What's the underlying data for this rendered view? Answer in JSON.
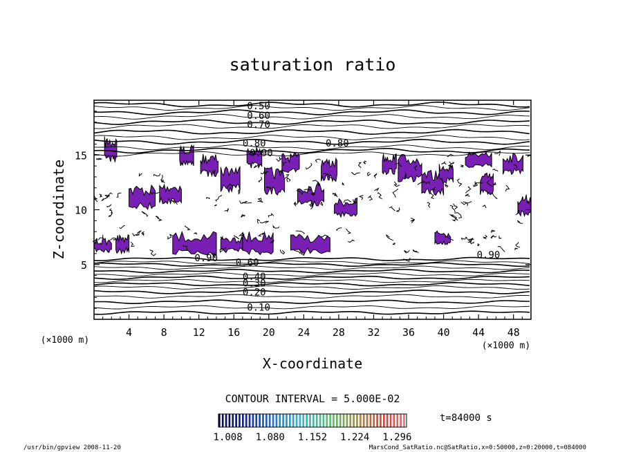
{
  "chart_data": {
    "type": "contour",
    "title": "saturation ratio",
    "xlabel": "X-coordinate",
    "ylabel": "Z-coordinate",
    "x_unit": "(×1000 m)",
    "y_unit": "(×1000 m)",
    "xlim": [
      0,
      50
    ],
    "ylim": [
      0,
      20
    ],
    "x_ticks": [
      4,
      8,
      12,
      16,
      20,
      24,
      28,
      32,
      36,
      40,
      44,
      48
    ],
    "y_ticks": [
      5,
      10,
      15
    ],
    "contour_interval": "CONTOUR INTERVAL = 5.000E-02",
    "time": "t=84000 s",
    "colorbar_ticks": [
      "1.008",
      "1.080",
      "1.152",
      "1.224",
      "1.296"
    ],
    "colorbar_range": [
      1.008,
      1.296
    ],
    "fill_color": "#7a1fb5",
    "contour_labels": [
      {
        "text": "0.50",
        "x": 17.5,
        "z": 19.5
      },
      {
        "text": "0.60",
        "x": 17.5,
        "z": 18.6
      },
      {
        "text": "0.70",
        "x": 17.5,
        "z": 17.8
      },
      {
        "text": "0.80",
        "x": 17.0,
        "z": 16.1
      },
      {
        "text": "0.90",
        "x": 17.8,
        "z": 15.2
      },
      {
        "text": "0.80",
        "x": 26.5,
        "z": 16.1
      },
      {
        "text": "0.90",
        "x": 11.5,
        "z": 5.6
      },
      {
        "text": "0.90",
        "x": 43.8,
        "z": 5.9
      },
      {
        "text": "0.60",
        "x": 16.2,
        "z": 5.2
      },
      {
        "text": "0.40",
        "x": 17.0,
        "z": 3.9
      },
      {
        "text": "0.30",
        "x": 17.0,
        "z": 3.3
      },
      {
        "text": "0.20",
        "x": 17.0,
        "z": 2.5
      },
      {
        "text": "0.10",
        "x": 17.5,
        "z": 1.1
      }
    ],
    "contour_levels_z": [
      19.6,
      19.3,
      18.9,
      18.5,
      18.0,
      17.6,
      17.1,
      16.6,
      16.2,
      15.7,
      15.4,
      15.1,
      5.5,
      5.2,
      5.0,
      4.7,
      4.4,
      4.1,
      3.8,
      3.5,
      3.2,
      2.9,
      2.5,
      2.1,
      1.6,
      1.1,
      0.6
    ],
    "supersaturated_regions": [
      {
        "x": 1.2,
        "z": 14.3,
        "w": 1.4,
        "h": 2.4
      },
      {
        "x": 4.0,
        "z": 10.0,
        "w": 3.0,
        "h": 2.3
      },
      {
        "x": 7.5,
        "z": 10.5,
        "w": 2.5,
        "h": 2.0
      },
      {
        "x": 9.8,
        "z": 14.0,
        "w": 1.6,
        "h": 1.9
      },
      {
        "x": 12.2,
        "z": 13.0,
        "w": 2.0,
        "h": 2.1
      },
      {
        "x": 14.5,
        "z": 11.5,
        "w": 2.2,
        "h": 2.7
      },
      {
        "x": 17.5,
        "z": 13.8,
        "w": 1.7,
        "h": 1.9
      },
      {
        "x": 19.5,
        "z": 11.3,
        "w": 2.3,
        "h": 2.6
      },
      {
        "x": 21.5,
        "z": 13.2,
        "w": 2.0,
        "h": 2.0
      },
      {
        "x": 23.3,
        "z": 10.2,
        "w": 3.0,
        "h": 2.4
      },
      {
        "x": 26.0,
        "z": 12.6,
        "w": 1.8,
        "h": 2.2
      },
      {
        "x": 27.5,
        "z": 9.3,
        "w": 2.6,
        "h": 1.8
      },
      {
        "x": 33.0,
        "z": 13.2,
        "w": 1.6,
        "h": 2.0
      },
      {
        "x": 34.8,
        "z": 12.5,
        "w": 2.7,
        "h": 2.6
      },
      {
        "x": 37.5,
        "z": 11.3,
        "w": 2.5,
        "h": 2.3
      },
      {
        "x": 39.5,
        "z": 12.4,
        "w": 1.6,
        "h": 2.0
      },
      {
        "x": 42.5,
        "z": 13.8,
        "w": 3.0,
        "h": 1.6
      },
      {
        "x": 44.2,
        "z": 11.3,
        "w": 1.5,
        "h": 2.1
      },
      {
        "x": 46.8,
        "z": 13.2,
        "w": 2.3,
        "h": 2.0
      },
      {
        "x": 48.5,
        "z": 9.4,
        "w": 1.5,
        "h": 2.0
      },
      {
        "x": 39.0,
        "z": 6.8,
        "w": 1.8,
        "h": 1.3
      },
      {
        "x": 0.0,
        "z": 6.1,
        "w": 2.0,
        "h": 1.3
      },
      {
        "x": 2.5,
        "z": 6.0,
        "w": 1.5,
        "h": 1.8
      },
      {
        "x": 9.0,
        "z": 5.8,
        "w": 5.0,
        "h": 2.2
      },
      {
        "x": 14.5,
        "z": 6.1,
        "w": 2.8,
        "h": 1.6
      },
      {
        "x": 17.0,
        "z": 5.9,
        "w": 3.5,
        "h": 2.1
      },
      {
        "x": 22.5,
        "z": 6.0,
        "w": 4.5,
        "h": 1.8
      }
    ]
  },
  "footer": {
    "left": "/usr/bin/gpview  2008-11-20",
    "right": "MarsCond_SatRatio.nc@SatRatio,x=0:50000,z=0:20000,t=084000"
  }
}
